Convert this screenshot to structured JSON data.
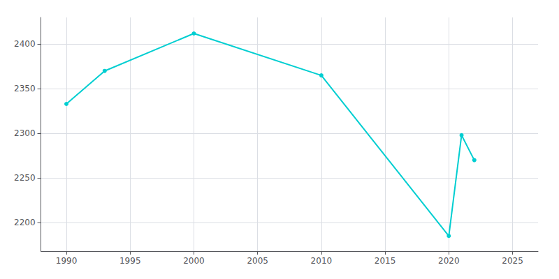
{
  "chart_data": {
    "type": "line",
    "x": [
      1990,
      1993,
      2000,
      2010,
      2020,
      2021,
      2022
    ],
    "values": [
      2333,
      2370,
      2412,
      2365,
      2185,
      2298,
      2270
    ],
    "color": "#00CED1",
    "marker": "circle",
    "xlim": [
      1988,
      2027
    ],
    "ylim": [
      2168,
      2430
    ],
    "xticks": [
      1990,
      1995,
      2000,
      2005,
      2010,
      2015,
      2020,
      2025
    ],
    "yticks": [
      2200,
      2250,
      2300,
      2350,
      2400
    ],
    "grid": true
  }
}
